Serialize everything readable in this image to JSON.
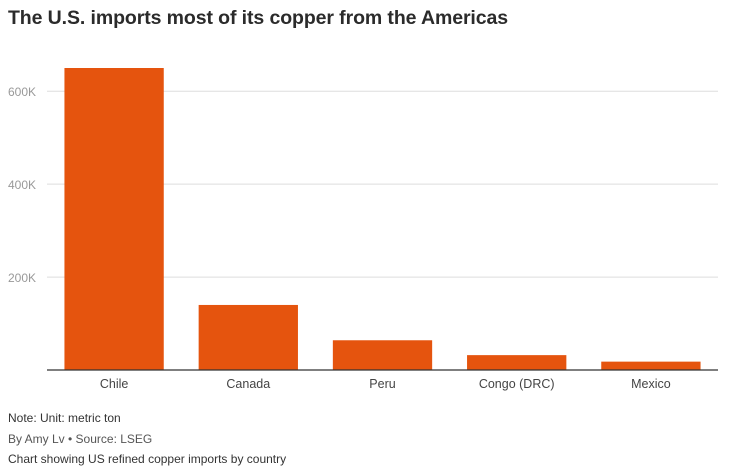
{
  "title": "The U.S. imports most of its copper from the Americas",
  "note": "Note: Unit: metric ton",
  "byline": "By Amy Lv • Source: LSEG",
  "caption": "Chart showing US refined copper imports by country",
  "colors": {
    "bar": "#E5540E",
    "grid": "#dddddd",
    "axis": "#333333",
    "tick_text": "#999999",
    "category_text": "#444444"
  },
  "chart_data": {
    "type": "bar",
    "title": "The U.S. imports most of its copper from the Americas",
    "categories": [
      "Chile",
      "Canada",
      "Peru",
      "Congo (DRC)",
      "Mexico"
    ],
    "values": [
      650000,
      140000,
      64000,
      32000,
      18000
    ],
    "xlabel": "",
    "ylabel": "",
    "ylim": [
      0,
      650000
    ],
    "yticks": [
      200000,
      400000,
      600000
    ],
    "ytick_labels": [
      "200K",
      "400K",
      "600K"
    ],
    "grid": true,
    "legend": "none"
  }
}
